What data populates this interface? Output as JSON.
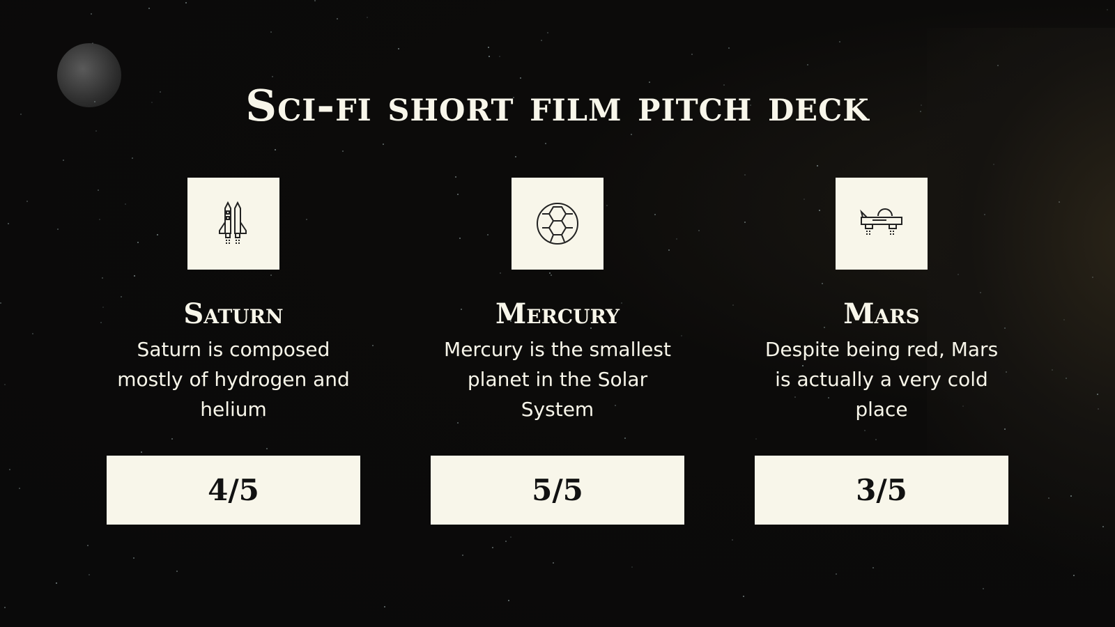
{
  "title": "Sci-fi short film pitch deck",
  "cards": [
    {
      "icon": "rocket-icon",
      "name": "Saturn",
      "description": "Saturn is composed mostly of hydrogen and helium",
      "rating": "4/5"
    },
    {
      "icon": "hexagon-planet-icon",
      "name": "Mercury",
      "description": "Mercury is the smallest planet in the Solar System",
      "rating": "5/5"
    },
    {
      "icon": "flying-car-icon",
      "name": "Mars",
      "description": "Despite being red, Mars is actually a very cold place",
      "rating": "3/5"
    }
  ],
  "colors": {
    "background": "#0a0a0a",
    "cream": "#f8f6ea"
  }
}
